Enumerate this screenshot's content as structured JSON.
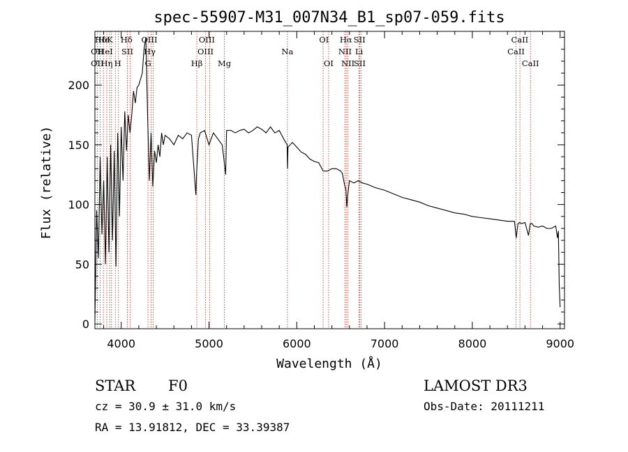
{
  "chart_data": {
    "type": "line",
    "title": "spec-55907-M31_007N34_B1_sp07-059.fits",
    "xlabel": "Wavelength (Å)",
    "ylabel": "Flux (relative)",
    "xlim": [
      3700,
      9050
    ],
    "ylim": [
      -4,
      245
    ],
    "xticks": [
      4000,
      5000,
      6000,
      7000,
      8000,
      9000
    ],
    "yticks": [
      0,
      50,
      100,
      150,
      200
    ],
    "series": [
      {
        "name": "spectrum",
        "x": [
          3700,
          3720,
          3740,
          3760,
          3780,
          3800,
          3820,
          3840,
          3860,
          3880,
          3900,
          3920,
          3940,
          3960,
          3980,
          4000,
          4020,
          4040,
          4060,
          4080,
          4100,
          4120,
          4140,
          4160,
          4180,
          4200,
          4220,
          4240,
          4260,
          4280,
          4300,
          4320,
          4340,
          4360,
          4380,
          4400,
          4420,
          4440,
          4460,
          4480,
          4500,
          4550,
          4600,
          4650,
          4700,
          4750,
          4800,
          4850,
          4860,
          4880,
          4900,
          4950,
          5000,
          5050,
          5100,
          5150,
          5170,
          5190,
          5200,
          5250,
          5300,
          5350,
          5400,
          5450,
          5500,
          5550,
          5600,
          5650,
          5700,
          5750,
          5800,
          5850,
          5890,
          5895,
          5900,
          5950,
          6000,
          6050,
          6100,
          6150,
          6200,
          6250,
          6300,
          6350,
          6400,
          6450,
          6500,
          6520,
          6540,
          6560,
          6570,
          6580,
          6600,
          6650,
          6700,
          6750,
          6800,
          6900,
          7000,
          7100,
          7200,
          7300,
          7400,
          7500,
          7600,
          7700,
          7800,
          7900,
          8000,
          8100,
          8200,
          8300,
          8400,
          8480,
          8500,
          8520,
          8540,
          8560,
          8600,
          8640,
          8660,
          8680,
          8700,
          8750,
          8800,
          8850,
          8900,
          8950,
          8970,
          8980,
          8990,
          9000
        ],
        "values": [
          3,
          95,
          55,
          140,
          75,
          120,
          50,
          140,
          60,
          150,
          70,
          145,
          48,
          160,
          90,
          165,
          120,
          178,
          145,
          175,
          160,
          175,
          195,
          185,
          198,
          200,
          205,
          210,
          230,
          240,
          175,
          120,
          160,
          115,
          145,
          135,
          150,
          140,
          160,
          150,
          158,
          155,
          150,
          158,
          155,
          160,
          158,
          108,
          128,
          155,
          160,
          162,
          150,
          160,
          155,
          150,
          138,
          125,
          162,
          162,
          160,
          162,
          163,
          160,
          162,
          165,
          163,
          160,
          165,
          160,
          162,
          155,
          150,
          130,
          148,
          152,
          148,
          144,
          142,
          138,
          136,
          135,
          128,
          128,
          130,
          130,
          128,
          126,
          118,
          112,
          98,
          108,
          120,
          118,
          120,
          118,
          117,
          114,
          112,
          109,
          106,
          104,
          102,
          99,
          97,
          95,
          93,
          92,
          90,
          89,
          88,
          87,
          86,
          86,
          72,
          84,
          85,
          84,
          85,
          74,
          84,
          84,
          82,
          81,
          82,
          80,
          80,
          82,
          72,
          78,
          32,
          14
        ]
      }
    ],
    "line_markers": [
      {
        "label": "Hδ",
        "x": 3765,
        "row": 0
      },
      {
        "label": "Hε",
        "x": 3800,
        "row": 0
      },
      {
        "label": "K",
        "x": 3870,
        "row": 0
      },
      {
        "label": "Hδ",
        "x": 4060,
        "row": 0
      },
      {
        "label": "OIII",
        "x": 4320,
        "row": 0
      },
      {
        "label": "OIII",
        "x": 4975,
        "row": 0
      },
      {
        "label": "OI",
        "x": 6310,
        "row": 0
      },
      {
        "label": "Hα",
        "x": 6560,
        "row": 0
      },
      {
        "label": "SII",
        "x": 6715,
        "row": 0
      },
      {
        "label": "CaII",
        "x": 8540,
        "row": 0
      },
      {
        "label": "OII",
        "x": 3727,
        "row": 1
      },
      {
        "label": "HeI",
        "x": 3820,
        "row": 1
      },
      {
        "label": "SII",
        "x": 4070,
        "row": 1
      },
      {
        "label": "Hγ",
        "x": 4325,
        "row": 1
      },
      {
        "label": "OIII",
        "x": 4960,
        "row": 1
      },
      {
        "label": "Na",
        "x": 5893,
        "row": 1
      },
      {
        "label": "NII",
        "x": 6550,
        "row": 1
      },
      {
        "label": "Li",
        "x": 6710,
        "row": 1
      },
      {
        "label": "CaII",
        "x": 8498,
        "row": 1
      },
      {
        "label": "OII",
        "x": 3727,
        "row": 2
      },
      {
        "label": "Hη",
        "x": 3835,
        "row": 2
      },
      {
        "label": "H",
        "x": 3960,
        "row": 2
      },
      {
        "label": "G",
        "x": 4305,
        "row": 2
      },
      {
        "label": "Hβ",
        "x": 4861,
        "row": 2
      },
      {
        "label": "Mg",
        "x": 5175,
        "row": 2
      },
      {
        "label": "OI",
        "x": 6363,
        "row": 2
      },
      {
        "label": "NII",
        "x": 6583,
        "row": 2
      },
      {
        "label": "SII",
        "x": 6717,
        "row": 2
      },
      {
        "label": "CaII",
        "x": 8662,
        "row": 2
      }
    ],
    "marker_lines": [
      3727,
      3760,
      3797,
      3835,
      3869,
      3889,
      3933,
      3968,
      4070,
      4102,
      4305,
      4340,
      4363,
      4861,
      4959,
      5007,
      5175,
      5893,
      6300,
      6363,
      6548,
      6563,
      6583,
      6707,
      6716,
      6731,
      8498,
      8542,
      8662
    ]
  },
  "footer": {
    "object_class": "STAR",
    "subclass": "F0",
    "survey": "LAMOST DR3",
    "redshift": "cz = 30.9 ± 31.0 km/s",
    "obs_date": "Obs-Date: 20111211",
    "coords": "RA =  13.91812, DEC =  33.39387"
  }
}
